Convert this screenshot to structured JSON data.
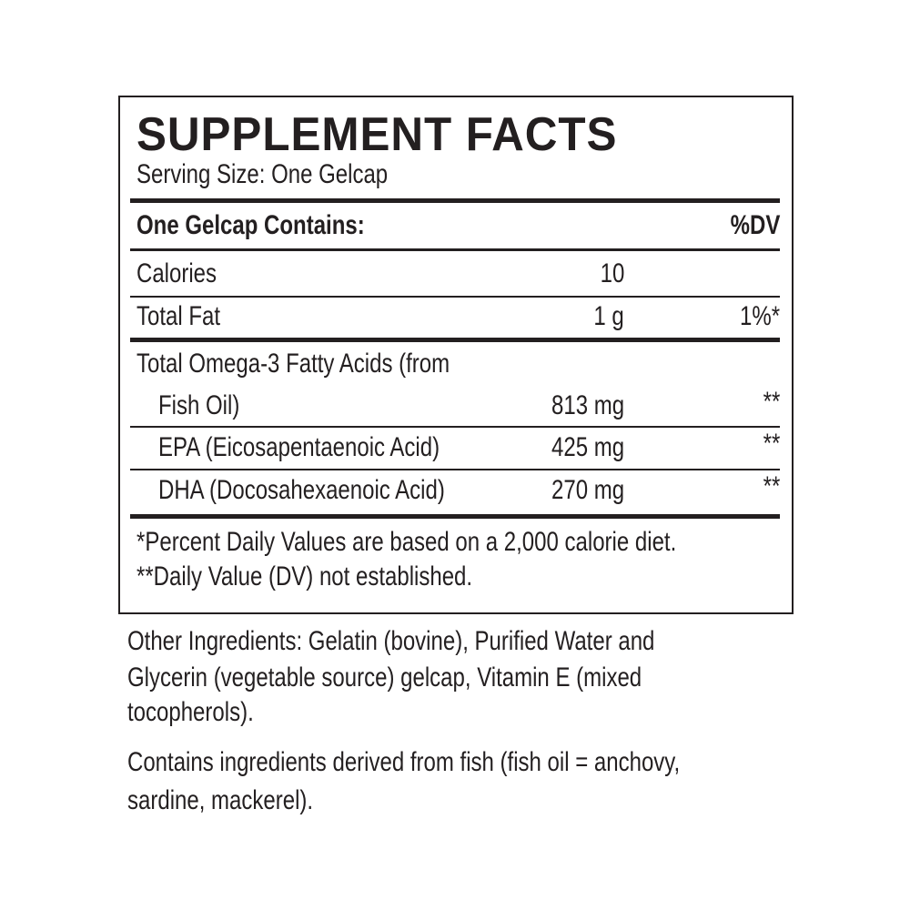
{
  "title": "SUPPLEMENT FACTS",
  "serving_size": "Serving Size: One Gelcap",
  "header": {
    "label": "One Gelcap Contains:",
    "dv": "%DV"
  },
  "rows": [
    {
      "name": "Calories",
      "amount": "10",
      "dv": ""
    },
    {
      "name": "Total Fat",
      "amount": "1 g",
      "dv": "1%*"
    },
    {
      "name": "Total Omega-3 Fatty Acids (from",
      "name2": "Fish Oil)",
      "amount": "813 mg",
      "dv": "**"
    },
    {
      "name": "EPA (Eicosapentaenoic Acid)",
      "amount": "425 mg",
      "dv": "**"
    },
    {
      "name": "DHA (Docosahexaenoic Acid)",
      "amount": "270 mg",
      "dv": "**"
    }
  ],
  "footnotes": [
    "*Percent Daily Values are based on a 2,000 calorie diet.",
    "**Daily Value (DV) not established."
  ],
  "other_ingredients": [
    "Other Ingredients: Gelatin (bovine), Purified Water and",
    "Glycerin (vegetable source) gelcap, Vitamin E (mixed",
    "tocopherols)."
  ],
  "allergen": [
    "Contains ingredients derived from fish (fish oil = anchovy,",
    "sardine, mackerel)."
  ]
}
